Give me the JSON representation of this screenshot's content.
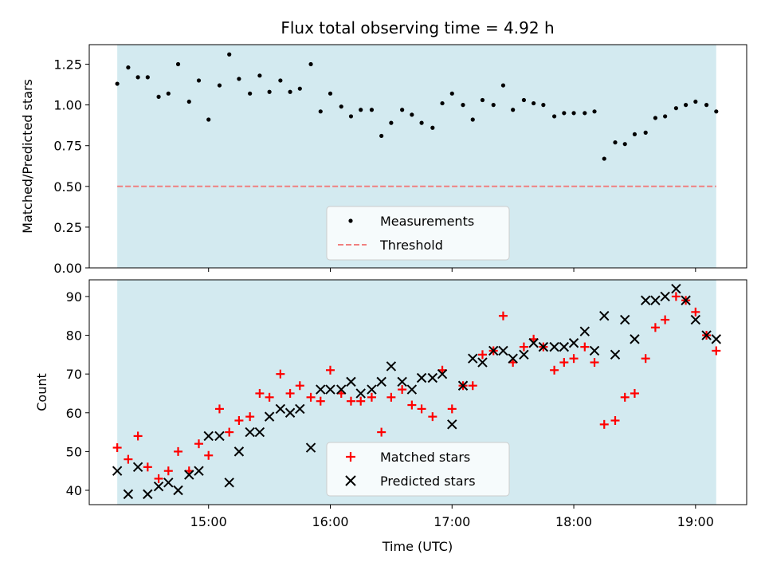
{
  "chart_data": {
    "type": "scatter",
    "title": "Flux total observing time = 4.92 h",
    "xlabel": "Time (UTC)",
    "x_unit": "hours (UTC)",
    "xlim": [
      14.02,
      19.42
    ],
    "x_ticks": [
      {
        "value": 15,
        "label": "15:00"
      },
      {
        "value": 16,
        "label": "16:00"
      },
      {
        "value": 17,
        "label": "17:00"
      },
      {
        "value": 18,
        "label": "18:00"
      },
      {
        "value": 19,
        "label": "19:00"
      }
    ],
    "shaded_span": [
      14.25,
      19.17
    ],
    "shade_color": "#d3eaf0",
    "grid": false,
    "panels": [
      {
        "ylabel": "Matched/Predicted stars",
        "ylim": [
          0,
          1.37
        ],
        "yticks": [
          "0.00",
          "0.25",
          "0.50",
          "0.75",
          "1.00",
          "1.25"
        ],
        "legend_position": "lower center",
        "series": [
          {
            "name": "Measurements",
            "marker": "dot",
            "color": "#000000",
            "x": [
              14.25,
              14.34,
              14.42,
              14.5,
              14.59,
              14.67,
              14.75,
              14.84,
              14.92,
              15.0,
              15.09,
              15.17,
              15.25,
              15.34,
              15.42,
              15.5,
              15.59,
              15.67,
              15.75,
              15.84,
              15.92,
              16.0,
              16.09,
              16.17,
              16.25,
              16.34,
              16.42,
              16.5,
              16.59,
              16.67,
              16.75,
              16.84,
              16.92,
              17.0,
              17.09,
              17.17,
              17.25,
              17.34,
              17.42,
              17.5,
              17.59,
              17.67,
              17.75,
              17.84,
              17.92,
              18.0,
              18.09,
              18.17,
              18.25,
              18.34,
              18.42,
              18.5,
              18.59,
              18.67,
              18.75,
              18.84,
              18.92,
              19.0,
              19.09,
              19.17
            ],
            "y": [
              1.13,
              1.23,
              1.17,
              1.17,
              1.05,
              1.07,
              1.25,
              1.02,
              1.15,
              0.91,
              1.12,
              1.31,
              1.16,
              1.07,
              1.18,
              1.08,
              1.15,
              1.08,
              1.1,
              1.25,
              0.96,
              1.07,
              0.99,
              0.93,
              0.97,
              0.97,
              0.81,
              0.89,
              0.97,
              0.94,
              0.89,
              0.86,
              1.01,
              1.07,
              1.0,
              0.91,
              1.03,
              1.0,
              1.12,
              0.97,
              1.03,
              1.01,
              1.0,
              0.93,
              0.95,
              0.95,
              0.95,
              0.96,
              0.67,
              0.77,
              0.76,
              0.82,
              0.83,
              0.92,
              0.93,
              0.98,
              1.0,
              1.02,
              1.0,
              0.96
            ]
          },
          {
            "name": "Threshold",
            "marker": "dashed-line",
            "color": "#f08080",
            "y_constant": 0.5
          }
        ]
      },
      {
        "ylabel": "Count",
        "ylim": [
          36.3,
          94.3
        ],
        "yticks": [
          "40",
          "50",
          "60",
          "70",
          "80",
          "90"
        ],
        "legend_position": "lower center",
        "series": [
          {
            "name": "Matched stars",
            "marker": "plus",
            "color": "#ff0000",
            "x": [
              14.25,
              14.34,
              14.42,
              14.5,
              14.59,
              14.67,
              14.75,
              14.84,
              14.92,
              15.0,
              15.09,
              15.17,
              15.25,
              15.34,
              15.42,
              15.5,
              15.59,
              15.67,
              15.75,
              15.84,
              15.92,
              16.0,
              16.09,
              16.17,
              16.25,
              16.34,
              16.42,
              16.5,
              16.59,
              16.67,
              16.75,
              16.84,
              16.92,
              17.0,
              17.09,
              17.17,
              17.25,
              17.34,
              17.42,
              17.5,
              17.59,
              17.67,
              17.75,
              17.84,
              17.92,
              18.0,
              18.09,
              18.17,
              18.25,
              18.34,
              18.42,
              18.5,
              18.59,
              18.67,
              18.75,
              18.84,
              18.92,
              19.0,
              19.09,
              19.17
            ],
            "y": [
              51,
              48,
              54,
              46,
              43,
              45,
              50,
              45,
              52,
              49,
              61,
              55,
              58,
              59,
              65,
              64,
              70,
              65,
              67,
              64,
              63,
              71,
              65,
              63,
              63,
              64,
              55,
              64,
              66,
              62,
              61,
              59,
              71,
              61,
              67,
              67,
              75,
              76,
              85,
              73,
              77,
              79,
              77,
              71,
              73,
              74,
              77,
              73,
              57,
              58,
              64,
              65,
              74,
              82,
              84,
              90,
              89,
              86,
              80,
              76
            ]
          },
          {
            "name": "Predicted stars",
            "marker": "x",
            "color": "#000000",
            "x": [
              14.25,
              14.34,
              14.42,
              14.5,
              14.59,
              14.67,
              14.75,
              14.84,
              14.92,
              15.0,
              15.09,
              15.17,
              15.25,
              15.34,
              15.42,
              15.5,
              15.59,
              15.67,
              15.75,
              15.84,
              15.92,
              16.0,
              16.09,
              16.17,
              16.25,
              16.34,
              16.42,
              16.5,
              16.59,
              16.67,
              16.75,
              16.84,
              16.92,
              17.0,
              17.09,
              17.17,
              17.25,
              17.34,
              17.42,
              17.5,
              17.59,
              17.67,
              17.75,
              17.84,
              17.92,
              18.0,
              18.09,
              18.17,
              18.25,
              18.34,
              18.42,
              18.5,
              18.59,
              18.67,
              18.75,
              18.84,
              18.92,
              19.0,
              19.09,
              19.17
            ],
            "y": [
              45,
              39,
              46,
              39,
              41,
              42,
              40,
              44,
              45,
              54,
              54,
              42,
              50,
              55,
              55,
              59,
              61,
              60,
              61,
              51,
              66,
              66,
              66,
              68,
              65,
              66,
              68,
              72,
              68,
              66,
              69,
              69,
              70,
              57,
              67,
              74,
              73,
              76,
              76,
              74,
              75,
              78,
              77,
              77,
              77,
              78,
              81,
              76,
              85,
              75,
              84,
              79,
              89,
              89,
              90,
              92,
              89,
              84,
              80,
              79
            ]
          }
        ]
      }
    ]
  }
}
